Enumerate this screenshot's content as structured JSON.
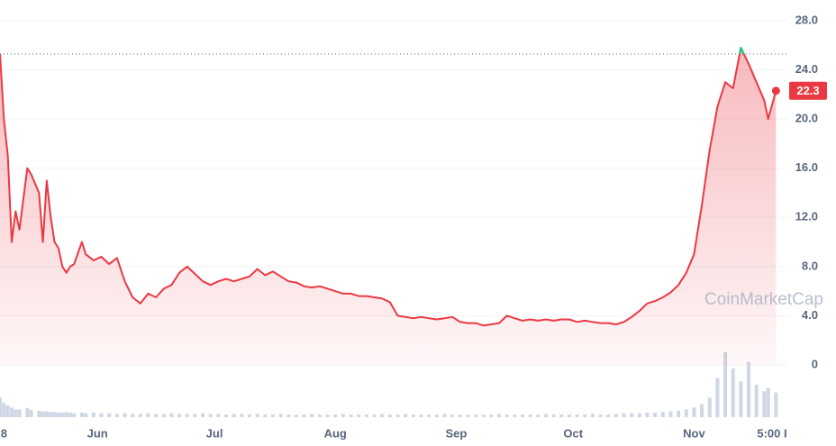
{
  "chart_data": {
    "type": "line",
    "x": [
      0,
      1,
      2,
      3,
      4,
      5,
      7,
      8,
      10,
      11,
      12,
      13,
      14,
      15,
      16,
      17,
      18,
      19,
      21,
      22,
      24,
      26,
      28,
      30,
      32,
      34,
      36,
      38,
      40,
      42,
      44,
      46,
      48,
      50,
      52,
      54,
      56,
      58,
      60,
      62,
      64,
      66,
      68,
      70,
      72,
      74,
      76,
      78,
      80,
      82,
      84,
      86,
      88,
      90,
      92,
      94,
      96,
      98,
      100,
      102,
      104,
      106,
      108,
      110,
      112,
      114,
      116,
      118,
      120,
      122,
      124,
      126,
      128,
      130,
      132,
      134,
      136,
      138,
      140,
      142,
      144,
      146,
      148,
      150,
      152,
      154,
      156,
      158,
      160,
      162,
      164,
      166,
      168,
      170,
      172,
      174,
      176,
      178,
      180,
      182,
      184,
      186,
      188,
      190,
      192,
      194,
      196,
      197,
      199
    ],
    "values": [
      25.3,
      20,
      17,
      10,
      12.5,
      11,
      16,
      15.5,
      14,
      10,
      15,
      12,
      10,
      9.5,
      8,
      7.5,
      8,
      8.2,
      10,
      9,
      8.5,
      8.8,
      8.2,
      8.7,
      6.8,
      5.5,
      5,
      5.8,
      5.5,
      6.2,
      6.5,
      7.5,
      8,
      7.4,
      6.8,
      6.5,
      6.8,
      7,
      6.8,
      7,
      7.2,
      7.8,
      7.3,
      7.6,
      7.2,
      6.8,
      6.7,
      6.4,
      6.3,
      6.4,
      6.2,
      6.0,
      5.8,
      5.8,
      5.6,
      5.6,
      5.5,
      5.4,
      5.1,
      4.0,
      3.9,
      3.8,
      3.9,
      3.8,
      3.7,
      3.8,
      3.9,
      3.5,
      3.4,
      3.4,
      3.2,
      3.3,
      3.4,
      4.0,
      3.8,
      3.6,
      3.7,
      3.6,
      3.7,
      3.6,
      3.7,
      3.7,
      3.5,
      3.6,
      3.5,
      3.4,
      3.4,
      3.3,
      3.5,
      3.9,
      4.4,
      5.0,
      5.2,
      5.5,
      5.9,
      6.5,
      7.5,
      9,
      13,
      17.5,
      21,
      23,
      22.5,
      25.8,
      24.5,
      23,
      21.5,
      20,
      22.3
    ],
    "volume": [
      30,
      22,
      18,
      15,
      12,
      12,
      14,
      11,
      10,
      9,
      9,
      8,
      8,
      7,
      7,
      8,
      7,
      6,
      7,
      6,
      7,
      6,
      6,
      5,
      6,
      5,
      5,
      6,
      5,
      5,
      6,
      5,
      5,
      5,
      6,
      5,
      5,
      4,
      5,
      5,
      4,
      5,
      4,
      4,
      5,
      4,
      4,
      4,
      5,
      4,
      4,
      4,
      5,
      4,
      4,
      4,
      4,
      5,
      4,
      4,
      5,
      4,
      4,
      4,
      4,
      5,
      4,
      4,
      4,
      4,
      4,
      4,
      5,
      4,
      4,
      4,
      4,
      4,
      5,
      4,
      4,
      4,
      4,
      4,
      5,
      4,
      4,
      5,
      6,
      6,
      6,
      7,
      7,
      8,
      9,
      10,
      12,
      15,
      20,
      30,
      60,
      100,
      75,
      55,
      85,
      50,
      40,
      45,
      38
    ],
    "volume_lim": [
      0,
      100
    ],
    "baseline": 25.3,
    "color": "#ea3943",
    "up_color": "#16c784",
    "volume_color": "#cfd6e4",
    "xlim": [
      0,
      201
    ],
    "xticks": [
      {
        "value": 1,
        "label": "8"
      },
      {
        "value": 25,
        "label": "Jun"
      },
      {
        "value": 55,
        "label": "Jul"
      },
      {
        "value": 86,
        "label": "Aug"
      },
      {
        "value": 117,
        "label": "Sep"
      },
      {
        "value": 147,
        "label": "Oct"
      },
      {
        "value": 178,
        "label": "Nov"
      },
      {
        "value": 198,
        "label": "5:00 I"
      }
    ],
    "ylim": [
      0,
      28
    ],
    "yticks": [
      {
        "value": 28,
        "label": "28.0"
      },
      {
        "value": 24,
        "label": "24.0"
      },
      {
        "value": 20,
        "label": "20.0"
      },
      {
        "value": 16,
        "label": "16.0"
      },
      {
        "value": 12,
        "label": "12.0"
      },
      {
        "value": 8,
        "label": "8.0"
      },
      {
        "value": 4,
        "label": "4.0"
      },
      0
    ],
    "grid": true,
    "watermark": "CoinMarketCap"
  }
}
